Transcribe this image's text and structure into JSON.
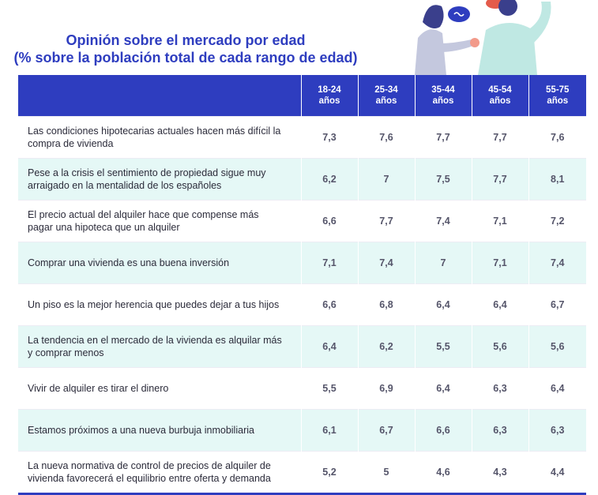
{
  "chart_data": {
    "type": "table",
    "title": "Opinión sobre el mercado por edad",
    "subtitle": "(% sobre la población total de cada rango de edad)",
    "columns": [
      {
        "line1": "18-24",
        "line2": "años"
      },
      {
        "line1": "25-34",
        "line2": "años"
      },
      {
        "line1": "35-44",
        "line2": "años"
      },
      {
        "line1": "45-54",
        "line2": "años"
      },
      {
        "line1": "55-75",
        "line2": "años"
      }
    ],
    "rows": [
      {
        "label": "Las condiciones hipotecarias actuales hacen más difícil la compra de vivienda",
        "values": [
          "7,3",
          "7,6",
          "7,7",
          "7,7",
          "7,6"
        ]
      },
      {
        "label": "Pese a la crisis el sentimiento de propiedad sigue muy arraigado en la mentalidad de los españoles",
        "values": [
          "6,2",
          "7",
          "7,5",
          "7,7",
          "8,1"
        ]
      },
      {
        "label": "El precio actual del alquiler hace que compense más pagar una hipoteca que un alquiler",
        "values": [
          "6,6",
          "7,7",
          "7,4",
          "7,1",
          "7,2"
        ]
      },
      {
        "label": "Comprar una vivienda es una buena inversión",
        "values": [
          "7,1",
          "7,4",
          "7",
          "7,1",
          "7,4"
        ]
      },
      {
        "label": "Un piso es la mejor herencia que puedes dejar a tus hijos",
        "values": [
          "6,6",
          "6,8",
          "6,4",
          "6,4",
          "6,7"
        ]
      },
      {
        "label": "La tendencia en el mercado de la vivienda es alquilar más y comprar menos",
        "values": [
          "6,4",
          "6,2",
          "5,5",
          "5,6",
          "5,6"
        ]
      },
      {
        "label": "Vivir de alquiler es tirar el dinero",
        "values": [
          "5,5",
          "6,9",
          "6,4",
          "6,3",
          "6,4"
        ]
      },
      {
        "label": "Estamos próximos a una nueva burbuja inmobiliaria",
        "values": [
          "6,1",
          "6,7",
          "6,6",
          "6,3",
          "6,3"
        ]
      },
      {
        "label": "La nueva normativa de control de precios de alquiler de vivienda favorecerá el equilibrio entre oferta y demanda",
        "values": [
          "5,2",
          "5",
          "4,6",
          "4,3",
          "4,4"
        ]
      }
    ]
  },
  "colors": {
    "header_bg": "#2e3dbf",
    "title": "#2e3dbf",
    "stripe": "#e5f8f6"
  },
  "illustration": {
    "icon": "people-talking-illustration"
  }
}
